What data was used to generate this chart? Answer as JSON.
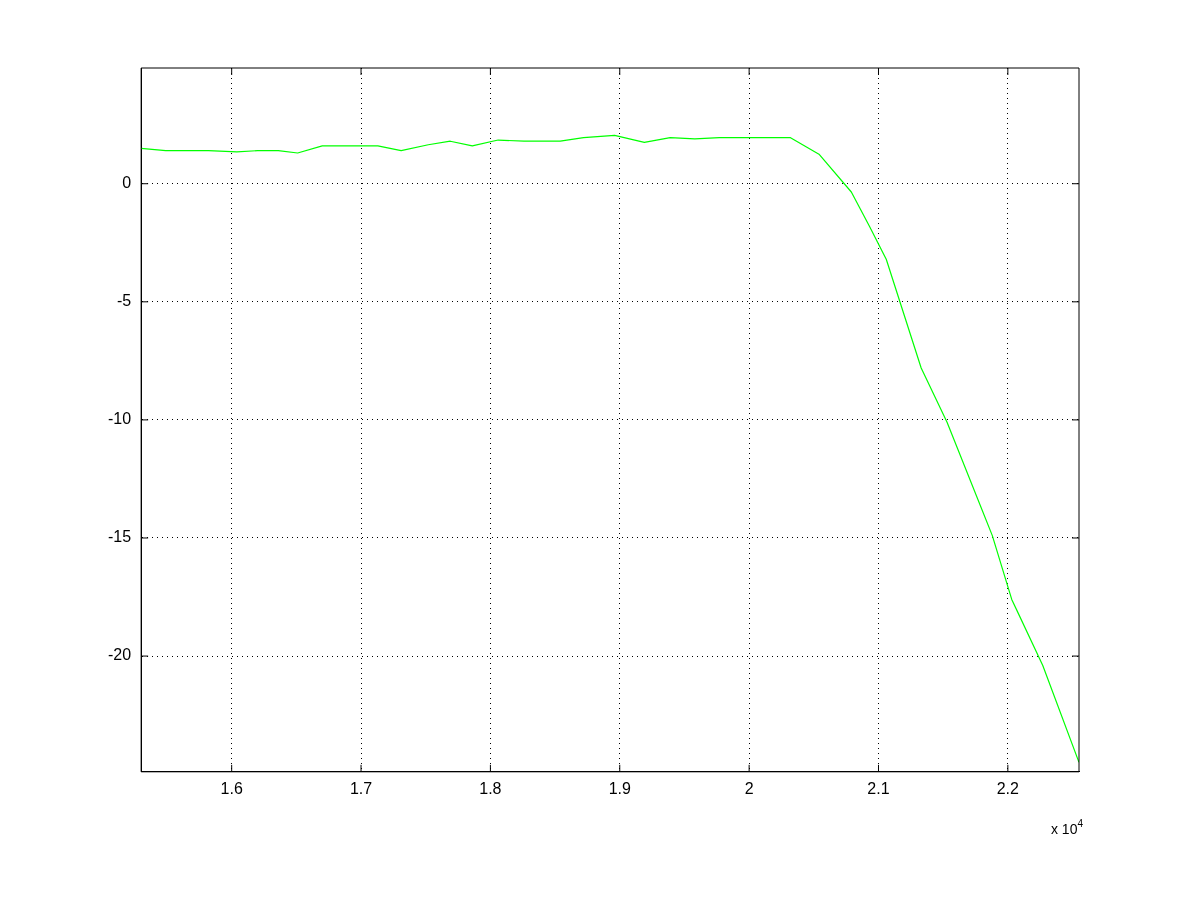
{
  "chart_data": {
    "type": "line",
    "x": [
      1.53,
      1.549,
      1.569,
      1.582,
      1.604,
      1.62,
      1.636,
      1.651,
      1.67,
      1.713,
      1.731,
      1.752,
      1.769,
      1.786,
      1.806,
      1.826,
      1.854,
      1.872,
      1.896,
      1.919,
      1.939,
      1.958,
      1.977,
      1.997,
      2.032,
      2.054,
      2.079,
      2.093,
      2.106,
      2.133,
      2.153,
      2.188,
      2.203,
      2.227,
      2.255
    ],
    "series": [
      {
        "color": "#00ff00",
        "values": [
          1.5,
          1.4,
          1.4,
          1.4,
          1.35,
          1.4,
          1.4,
          1.3,
          1.6,
          1.6,
          1.4,
          1.65,
          1.8,
          1.6,
          1.85,
          1.8,
          1.8,
          1.95,
          2.05,
          1.75,
          1.95,
          1.9,
          1.95,
          1.95,
          1.95,
          1.25,
          -0.35,
          -1.8,
          -3.2,
          -7.8,
          -10.1,
          -14.9,
          -17.6,
          -20.4,
          -24.5
        ]
      }
    ],
    "xlim": [
      1.53,
      2.255
    ],
    "xticks": [
      1.6,
      1.7,
      1.8,
      1.9,
      2,
      2.1,
      2.2
    ],
    "ylim": [
      -24.9,
      4.9
    ],
    "yticks": [
      -20,
      -15,
      -10,
      -5,
      0
    ],
    "grid": true,
    "legend": false,
    "marker": "none",
    "line_style": "solid",
    "annotations": [
      "x 10$^{4}$"
    ]
  }
}
